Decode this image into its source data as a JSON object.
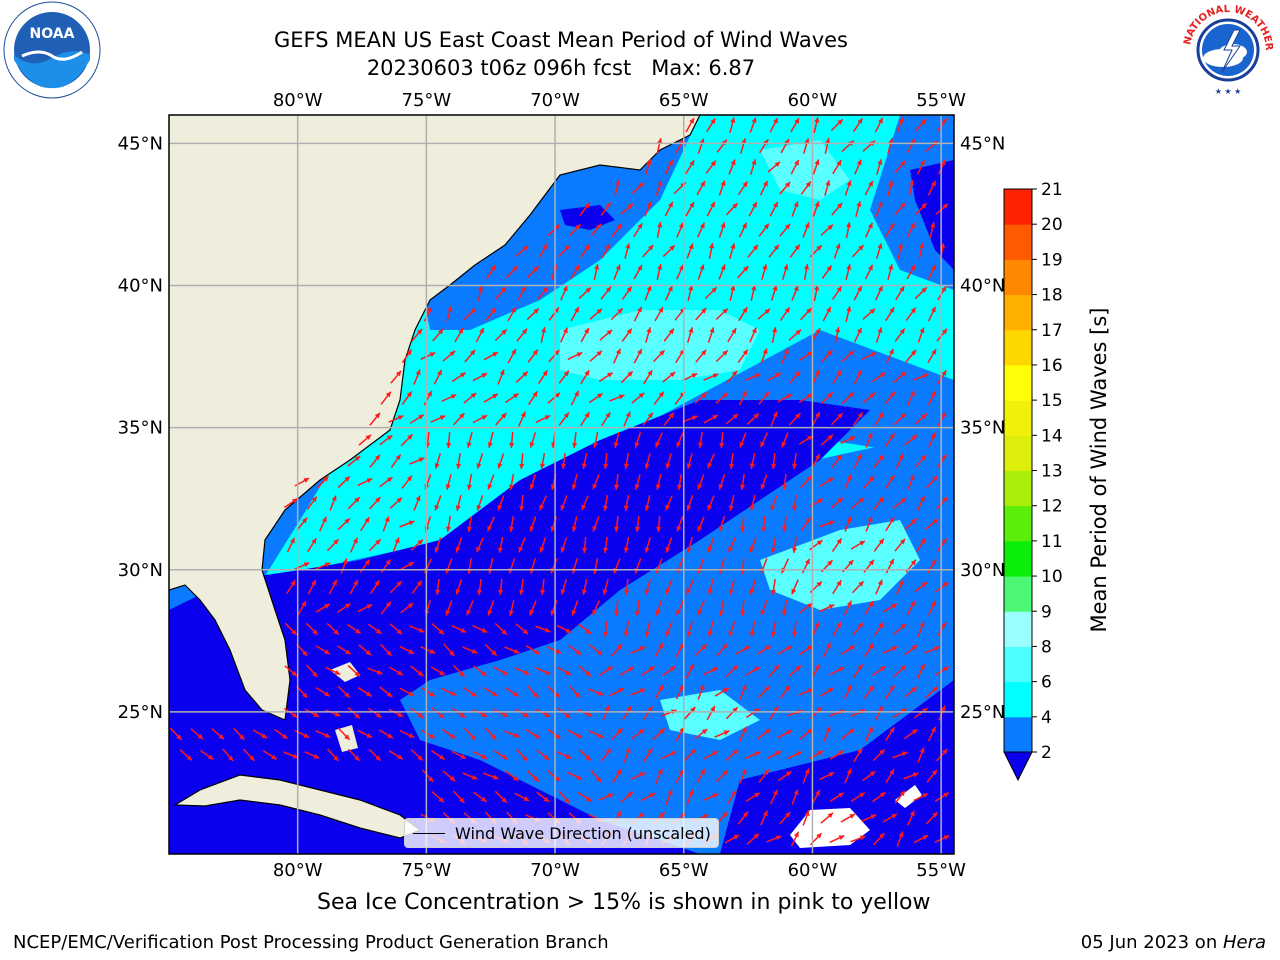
{
  "title": {
    "line1": "GEFS MEAN US East Coast Mean Period of Wind Waves",
    "line2": "20230603 t06z 096h fcst   Max: 6.87"
  },
  "map": {
    "lon_ticks": [
      "80°W",
      "75°W",
      "70°W",
      "65°W",
      "60°W",
      "55°W"
    ],
    "lat_ticks": [
      "45°N",
      "40°N",
      "35°N",
      "30°N",
      "25°N"
    ],
    "extent": {
      "lon_min": -85,
      "lon_max": -54.5,
      "lat_min": 20,
      "lat_max": 46
    },
    "colors": {
      "land": "#efeedd",
      "under2": "#0a00ee",
      "2to4": "#0a7aff",
      "4to6": "#00ffff",
      "6to8": "#5affff",
      "arrow": "#ff1a1a",
      "grid": "#b0b0b0"
    }
  },
  "legend": {
    "label": "Wind Wave Direction (unscaled)"
  },
  "colorbar": {
    "label": "Mean Period of Wind Waves [s]",
    "ticks": [
      "2",
      "4",
      "6",
      "8",
      "9",
      "10",
      "11",
      "12",
      "13",
      "14",
      "15",
      "16",
      "17",
      "18",
      "19",
      "20",
      "21"
    ],
    "colors": [
      "#0a7aff",
      "#00ffff",
      "#4cffff",
      "#99ffff",
      "#4cf774",
      "#0aee0a",
      "#5aee0a",
      "#aaee0a",
      "#dcee0a",
      "#f0f00a",
      "#ffff0a",
      "#ffd700",
      "#ffb000",
      "#ff8800",
      "#ff5a00",
      "#ff2200",
      "#ff0000"
    ],
    "extend_color": "#0a00ee"
  },
  "caption": "Sea Ice Concentration > 15% is shown in pink to yellow",
  "footer": {
    "left": "NCEP/EMC/Verification Post Processing Product Generation Branch",
    "right_date": "05 Jun 2023 on ",
    "right_host": "Hera"
  },
  "logos": {
    "left": "NOAA",
    "right": "NATIONAL WEATHER SERVICE"
  }
}
